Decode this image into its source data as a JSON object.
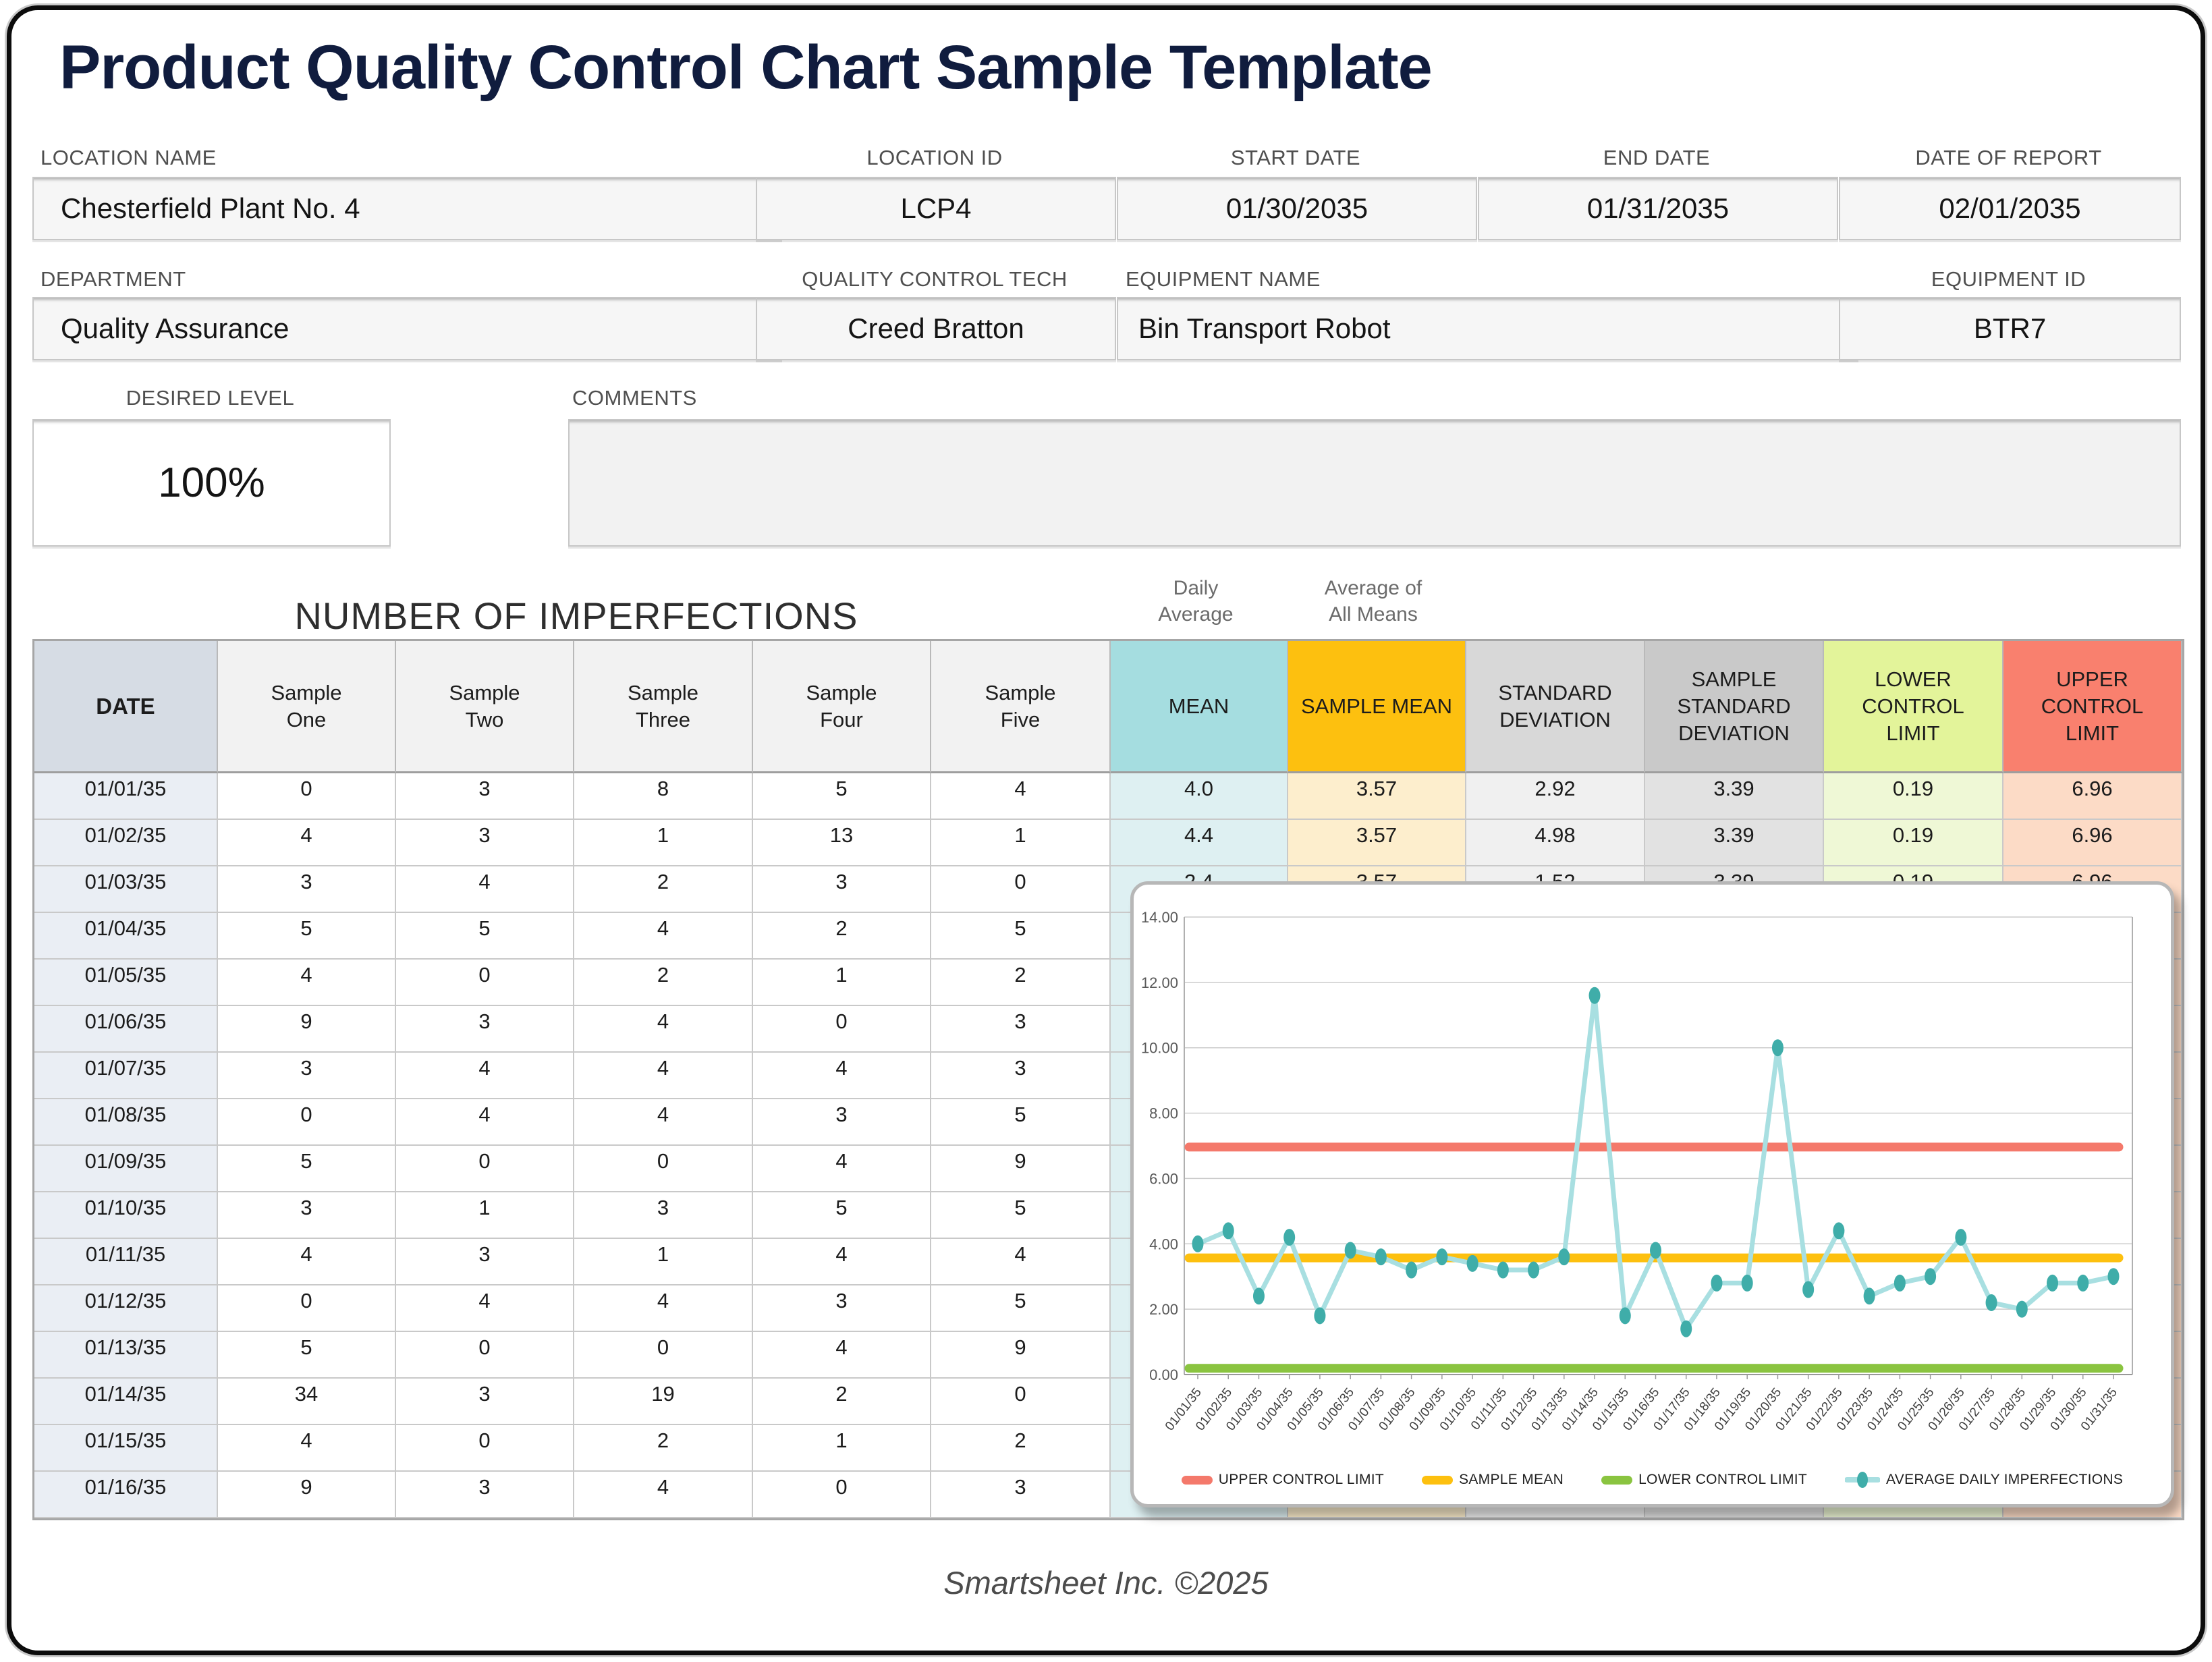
{
  "page": {
    "title": "Product Quality Control Chart Sample Template",
    "footer": "Smartsheet Inc. ©2025"
  },
  "fields": {
    "location_name": {
      "label": "LOCATION NAME",
      "value": "Chesterfield Plant No. 4"
    },
    "location_id": {
      "label": "LOCATION ID",
      "value": "LCP4"
    },
    "start_date": {
      "label": "START DATE",
      "value": "01/30/2035"
    },
    "end_date": {
      "label": "END DATE",
      "value": "01/31/2035"
    },
    "date_of_report": {
      "label": "DATE OF REPORT",
      "value": "02/01/2035"
    },
    "department": {
      "label": "DEPARTMENT",
      "value": "Quality Assurance"
    },
    "qc_tech": {
      "label": "QUALITY CONTROL TECH",
      "value": "Creed Bratton"
    },
    "equipment_name": {
      "label": "EQUIPMENT NAME",
      "value": "Bin Transport Robot"
    },
    "equipment_id": {
      "label": "EQUIPMENT ID",
      "value": "BTR7"
    },
    "desired_level": {
      "label": "DESIRED LEVEL",
      "value": "100%"
    },
    "comments": {
      "label": "COMMENTS",
      "value": ""
    }
  },
  "table": {
    "title": "NUMBER OF IMPERFECTIONS",
    "annotations": {
      "daily_average": "Daily\nAverage",
      "average_of_all_means": "Average of\nAll Means"
    },
    "headers": [
      {
        "key": "date",
        "label": "DATE"
      },
      {
        "key": "sample",
        "label": "Sample\nOne"
      },
      {
        "key": "sample",
        "label": "Sample\nTwo"
      },
      {
        "key": "sample",
        "label": "Sample\nThree"
      },
      {
        "key": "sample",
        "label": "Sample\nFour"
      },
      {
        "key": "sample",
        "label": "Sample\nFive"
      },
      {
        "key": "mean",
        "label": "MEAN"
      },
      {
        "key": "sample_mean",
        "label": "SAMPLE MEAN"
      },
      {
        "key": "std",
        "label": "STANDARD\nDEVIATION"
      },
      {
        "key": "sstd",
        "label": "SAMPLE\nSTANDARD\nDEVIATION"
      },
      {
        "key": "lcl",
        "label": "LOWER\nCONTROL\nLIMIT"
      },
      {
        "key": "ucl",
        "label": "UPPER\nCONTROL\nLIMIT"
      }
    ],
    "stat_keys": [
      "mean",
      "sample_mean",
      "std",
      "sstd",
      "lcl",
      "ucl"
    ],
    "colors": {
      "header": {
        "date": "#d6dce4",
        "sample": "#f2f2f2",
        "mean": "#a5dde0",
        "sample_mean": "#fdc00f",
        "std": "#d8d8d8",
        "sstd": "#c9c9c9",
        "lcl": "#e3f49a",
        "ucl": "#f9806e"
      },
      "cell": {
        "date": "#eaeef4",
        "sample": "#ffffff",
        "mean": "#def0f2",
        "sample_mean": "#fdeecd",
        "std": "#f0f0f0",
        "sstd": "#e2e2e2",
        "lcl": "#eff8d6",
        "ucl": "#fcdbc6"
      }
    },
    "rows": [
      {
        "date": "01/01/35",
        "samples": [
          "0",
          "3",
          "8",
          "5",
          "4"
        ],
        "stats": [
          "4.0",
          "3.57",
          "2.92",
          "3.39",
          "0.19",
          "6.96"
        ]
      },
      {
        "date": "01/02/35",
        "samples": [
          "4",
          "3",
          "1",
          "13",
          "1"
        ],
        "stats": [
          "4.4",
          "3.57",
          "4.98",
          "3.39",
          "0.19",
          "6.96"
        ]
      },
      {
        "date": "01/03/35",
        "samples": [
          "3",
          "4",
          "2",
          "3",
          "0"
        ],
        "stats": [
          "2.4",
          "3.57",
          "1.52",
          "3.39",
          "0.19",
          "6.96"
        ]
      },
      {
        "date": "01/04/35",
        "samples": [
          "5",
          "5",
          "4",
          "2",
          "5"
        ],
        "stats": null
      },
      {
        "date": "01/05/35",
        "samples": [
          "4",
          "0",
          "2",
          "1",
          "2"
        ],
        "stats": null
      },
      {
        "date": "01/06/35",
        "samples": [
          "9",
          "3",
          "4",
          "0",
          "3"
        ],
        "stats": null
      },
      {
        "date": "01/07/35",
        "samples": [
          "3",
          "4",
          "4",
          "4",
          "3"
        ],
        "stats": null
      },
      {
        "date": "01/08/35",
        "samples": [
          "0",
          "4",
          "4",
          "3",
          "5"
        ],
        "stats": null
      },
      {
        "date": "01/09/35",
        "samples": [
          "5",
          "0",
          "0",
          "4",
          "9"
        ],
        "stats": null
      },
      {
        "date": "01/10/35",
        "samples": [
          "3",
          "1",
          "3",
          "5",
          "5"
        ],
        "stats": null
      },
      {
        "date": "01/11/35",
        "samples": [
          "4",
          "3",
          "1",
          "4",
          "4"
        ],
        "stats": null
      },
      {
        "date": "01/12/35",
        "samples": [
          "0",
          "4",
          "4",
          "3",
          "5"
        ],
        "stats": null
      },
      {
        "date": "01/13/35",
        "samples": [
          "5",
          "0",
          "0",
          "4",
          "9"
        ],
        "stats": null
      },
      {
        "date": "01/14/35",
        "samples": [
          "34",
          "3",
          "19",
          "2",
          "0"
        ],
        "stats": null
      },
      {
        "date": "01/15/35",
        "samples": [
          "4",
          "0",
          "2",
          "1",
          "2"
        ],
        "stats": null
      },
      {
        "date": "01/16/35",
        "samples": [
          "9",
          "3",
          "4",
          "0",
          "3"
        ],
        "stats": null
      }
    ]
  },
  "chart_data": {
    "type": "line",
    "x": [
      "01/01/35",
      "01/02/35",
      "01/03/35",
      "01/04/35",
      "01/05/35",
      "01/06/35",
      "01/07/35",
      "01/08/35",
      "01/09/35",
      "01/10/35",
      "01/11/35",
      "01/12/35",
      "01/13/35",
      "01/14/35",
      "01/15/35",
      "01/16/35",
      "01/17/35",
      "01/18/35",
      "01/19/35",
      "01/20/35",
      "01/21/35",
      "01/22/35",
      "01/23/35",
      "01/24/35",
      "01/25/35",
      "01/26/35",
      "01/27/35",
      "01/28/35",
      "01/29/35",
      "01/30/35",
      "01/31/35"
    ],
    "series": [
      {
        "name": "UPPER CONTROL LIMIT",
        "style": "constant",
        "value": 6.96,
        "color": "#f4796b"
      },
      {
        "name": "SAMPLE MEAN",
        "style": "constant",
        "value": 3.57,
        "color": "#fdc00f"
      },
      {
        "name": "LOWER CONTROL LIMIT",
        "style": "constant",
        "value": 0.19,
        "color": "#8ac440"
      },
      {
        "name": "AVERAGE DAILY IMPERFECTIONS",
        "style": "line-markers",
        "color": "#a8dfe1",
        "marker_color": "#3fada9",
        "values": [
          4.0,
          4.4,
          2.4,
          4.2,
          1.8,
          3.8,
          3.6,
          3.2,
          3.6,
          3.4,
          3.2,
          3.2,
          3.6,
          11.6,
          1.8,
          3.8,
          1.4,
          2.8,
          2.8,
          10.0,
          2.6,
          4.4,
          2.4,
          2.8,
          3.0,
          4.2,
          2.2,
          2.0,
          2.8,
          2.8,
          3.0
        ]
      }
    ],
    "ylim": [
      0,
      14
    ],
    "ytick_step": 2,
    "grid": true,
    "legend_position": "bottom"
  }
}
